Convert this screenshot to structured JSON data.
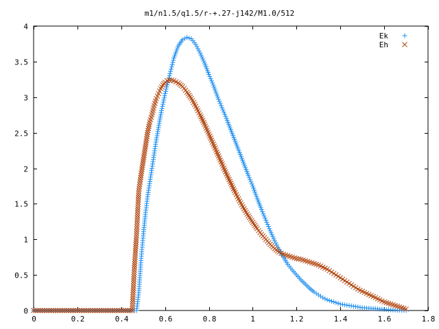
{
  "chart_data": {
    "type": "scatter",
    "title": "m1/n1.5/q1.5/r-+.27-j142/M1.0/512",
    "xlabel": "",
    "ylabel": "",
    "xlim": [
      0,
      1.8
    ],
    "ylim": [
      0,
      4
    ],
    "x_ticks": [
      "0",
      "0.2",
      "0.4",
      "0.6",
      "0.8",
      "1",
      "1.2",
      "1.4",
      "1.6",
      "1.8"
    ],
    "y_ticks": [
      "0",
      "0.5",
      "1",
      "1.5",
      "2",
      "2.5",
      "3",
      "3.5",
      "4"
    ],
    "grid": false,
    "legend_position": "top-right",
    "colors": {
      "Ek": "#1f8ff0",
      "Eh": "#b0450e"
    },
    "series": [
      {
        "name": "Ek",
        "marker": "plus",
        "points": [
          [
            0.0,
            0
          ],
          [
            0.05,
            0
          ],
          [
            0.1,
            0
          ],
          [
            0.15,
            0
          ],
          [
            0.2,
            0
          ],
          [
            0.25,
            0
          ],
          [
            0.3,
            0
          ],
          [
            0.35,
            0
          ],
          [
            0.4,
            0
          ],
          [
            0.45,
            0
          ],
          [
            0.47,
            0
          ],
          [
            0.48,
            0.25
          ],
          [
            0.49,
            0.7
          ],
          [
            0.5,
            1.05
          ],
          [
            0.51,
            1.35
          ],
          [
            0.52,
            1.6
          ],
          [
            0.54,
            2.0
          ],
          [
            0.56,
            2.4
          ],
          [
            0.58,
            2.75
          ],
          [
            0.6,
            3.05
          ],
          [
            0.62,
            3.3
          ],
          [
            0.64,
            3.55
          ],
          [
            0.66,
            3.72
          ],
          [
            0.68,
            3.81
          ],
          [
            0.7,
            3.84
          ],
          [
            0.72,
            3.82
          ],
          [
            0.74,
            3.74
          ],
          [
            0.76,
            3.62
          ],
          [
            0.78,
            3.48
          ],
          [
            0.8,
            3.32
          ],
          [
            0.82,
            3.17
          ],
          [
            0.84,
            3.0
          ],
          [
            0.86,
            2.85
          ],
          [
            0.88,
            2.7
          ],
          [
            0.9,
            2.54
          ],
          [
            0.92,
            2.38
          ],
          [
            0.94,
            2.22
          ],
          [
            0.96,
            2.06
          ],
          [
            0.98,
            1.9
          ],
          [
            1.0,
            1.75
          ],
          [
            1.02,
            1.58
          ],
          [
            1.04,
            1.42
          ],
          [
            1.06,
            1.27
          ],
          [
            1.08,
            1.12
          ],
          [
            1.1,
            0.98
          ],
          [
            1.12,
            0.86
          ],
          [
            1.14,
            0.75
          ],
          [
            1.16,
            0.65
          ],
          [
            1.18,
            0.57
          ],
          [
            1.2,
            0.5
          ],
          [
            1.22,
            0.43
          ],
          [
            1.24,
            0.37
          ],
          [
            1.26,
            0.31
          ],
          [
            1.28,
            0.26
          ],
          [
            1.3,
            0.22
          ],
          [
            1.32,
            0.18
          ],
          [
            1.34,
            0.15
          ],
          [
            1.36,
            0.13
          ],
          [
            1.38,
            0.11
          ],
          [
            1.4,
            0.09
          ],
          [
            1.42,
            0.08
          ],
          [
            1.44,
            0.07
          ],
          [
            1.46,
            0.06
          ],
          [
            1.48,
            0.05
          ],
          [
            1.5,
            0.04
          ],
          [
            1.52,
            0.035
          ],
          [
            1.54,
            0.03
          ],
          [
            1.56,
            0.025
          ],
          [
            1.58,
            0.02
          ],
          [
            1.6,
            0.015
          ],
          [
            1.62,
            0.01
          ],
          [
            1.64,
            0.008
          ],
          [
            1.66,
            0.005
          ],
          [
            1.68,
            0.003
          ],
          [
            1.7,
            0.001
          ]
        ]
      },
      {
        "name": "Eh",
        "marker": "cross",
        "points": [
          [
            0.0,
            0
          ],
          [
            0.05,
            0
          ],
          [
            0.1,
            0
          ],
          [
            0.15,
            0
          ],
          [
            0.2,
            0
          ],
          [
            0.25,
            0
          ],
          [
            0.3,
            0
          ],
          [
            0.35,
            0
          ],
          [
            0.4,
            0
          ],
          [
            0.45,
            0
          ],
          [
            0.46,
            0.6
          ],
          [
            0.47,
            1.08
          ],
          [
            0.475,
            1.4
          ],
          [
            0.48,
            1.68
          ],
          [
            0.49,
            1.9
          ],
          [
            0.5,
            2.1
          ],
          [
            0.51,
            2.3
          ],
          [
            0.52,
            2.5
          ],
          [
            0.53,
            2.65
          ],
          [
            0.54,
            2.75
          ],
          [
            0.55,
            2.88
          ],
          [
            0.56,
            2.98
          ],
          [
            0.57,
            3.05
          ],
          [
            0.58,
            3.12
          ],
          [
            0.59,
            3.17
          ],
          [
            0.6,
            3.21
          ],
          [
            0.61,
            3.23
          ],
          [
            0.62,
            3.24
          ],
          [
            0.63,
            3.24
          ],
          [
            0.64,
            3.23
          ],
          [
            0.66,
            3.2
          ],
          [
            0.68,
            3.15
          ],
          [
            0.7,
            3.07
          ],
          [
            0.72,
            2.98
          ],
          [
            0.74,
            2.87
          ],
          [
            0.76,
            2.75
          ],
          [
            0.78,
            2.62
          ],
          [
            0.8,
            2.48
          ],
          [
            0.82,
            2.34
          ],
          [
            0.84,
            2.2
          ],
          [
            0.86,
            2.06
          ],
          [
            0.88,
            1.92
          ],
          [
            0.9,
            1.79
          ],
          [
            0.92,
            1.66
          ],
          [
            0.94,
            1.54
          ],
          [
            0.96,
            1.43
          ],
          [
            0.98,
            1.33
          ],
          [
            1.0,
            1.24
          ],
          [
            1.02,
            1.15
          ],
          [
            1.04,
            1.07
          ],
          [
            1.06,
            1.0
          ],
          [
            1.08,
            0.93
          ],
          [
            1.1,
            0.87
          ],
          [
            1.12,
            0.82
          ],
          [
            1.14,
            0.79
          ],
          [
            1.16,
            0.77
          ],
          [
            1.18,
            0.75
          ],
          [
            1.2,
            0.73
          ],
          [
            1.22,
            0.72
          ],
          [
            1.24,
            0.7
          ],
          [
            1.26,
            0.68
          ],
          [
            1.28,
            0.66
          ],
          [
            1.3,
            0.64
          ],
          [
            1.32,
            0.61
          ],
          [
            1.34,
            0.58
          ],
          [
            1.36,
            0.54
          ],
          [
            1.38,
            0.5
          ],
          [
            1.4,
            0.46
          ],
          [
            1.42,
            0.42
          ],
          [
            1.44,
            0.38
          ],
          [
            1.46,
            0.34
          ],
          [
            1.48,
            0.3
          ],
          [
            1.5,
            0.27
          ],
          [
            1.52,
            0.24
          ],
          [
            1.54,
            0.21
          ],
          [
            1.56,
            0.18
          ],
          [
            1.58,
            0.15
          ],
          [
            1.6,
            0.12
          ],
          [
            1.62,
            0.1
          ],
          [
            1.64,
            0.08
          ],
          [
            1.66,
            0.06
          ],
          [
            1.68,
            0.04
          ],
          [
            1.7,
            0.02
          ]
        ]
      }
    ]
  }
}
